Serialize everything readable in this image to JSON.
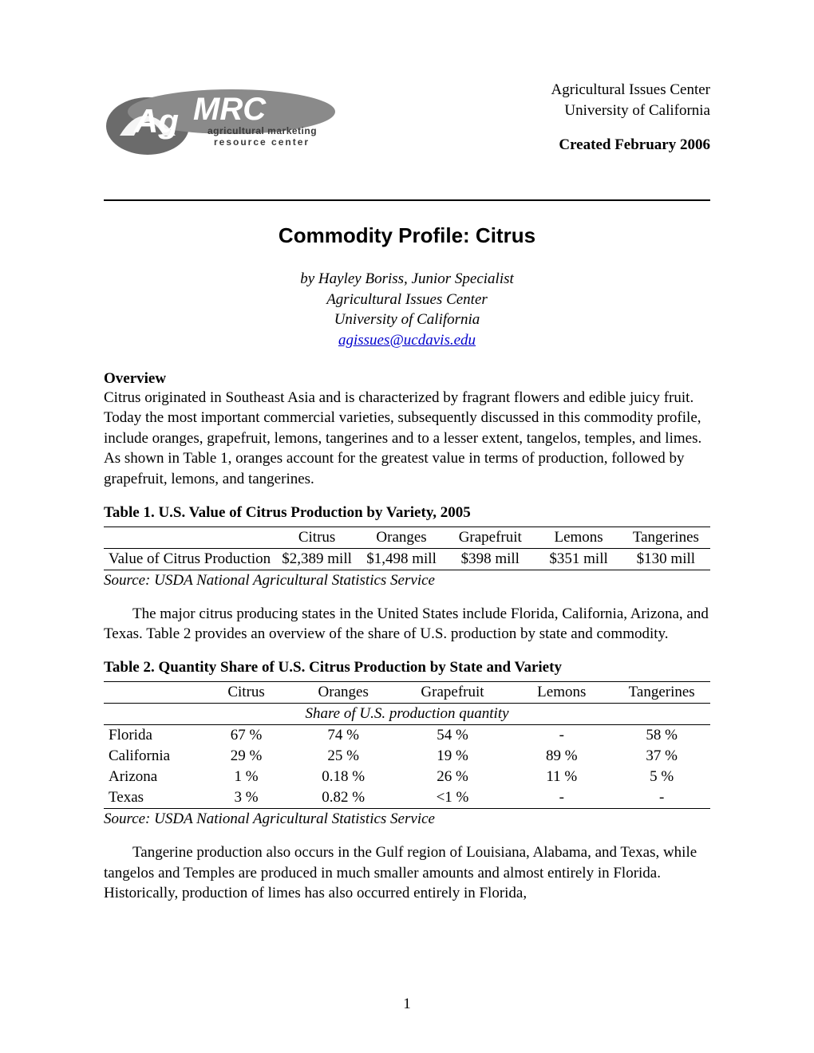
{
  "header": {
    "org1": "Agricultural Issues Center",
    "org2": "University of California",
    "created": "Created February 2006",
    "logo_alt": "AgMRC agricultural marketing resource center",
    "logo_tag1": "agricultural marketing",
    "logo_tag2": "resource center"
  },
  "title": "Commodity Profile: Citrus",
  "byline": {
    "l1": "by Hayley Boriss, Junior Specialist",
    "l2": "Agricultural Issues Center",
    "l3": "University of California",
    "email": "agissues@ucdavis.edu"
  },
  "overview_head": "Overview",
  "overview_body": "Citrus originated in Southeast Asia and is characterized by fragrant flowers and edible juicy fruit.  Today the most important commercial varieties, subsequently discussed in this commodity profile, include oranges, grapefruit, lemons, tangerines and to a lesser extent, tangelos, temples, and limes.  As shown in Table 1, oranges account for the greatest value in terms of production, followed by grapefruit, lemons, and tangerines.",
  "table1": {
    "caption": "Table 1.  U.S. Value of Citrus Production by Variety, 2005",
    "columns": [
      "",
      "Citrus",
      "Oranges",
      "Grapefruit",
      "Lemons",
      "Tangerines"
    ],
    "row_label": "Value of Citrus Production",
    "values": [
      "$2,389 mill",
      "$1,498 mill",
      "$398 mill",
      "$351 mill",
      "$130 mill"
    ],
    "source": "Source: USDA National Agricultural Statistics Service",
    "col_widths_pct": [
      16,
      17,
      17,
      17,
      17,
      16
    ]
  },
  "para2": "The major citrus producing states in the United States include Florida, California, Arizona, and Texas.  Table 2 provides an overview of the share of U.S. production by state and commodity.",
  "table2": {
    "caption": "Table 2.  Quantity Share of U.S. Citrus Production by State and Variety",
    "columns": [
      "",
      "Citrus",
      "Oranges",
      "Grapefruit",
      "Lemons",
      "Tangerines"
    ],
    "subhead": "Share of U.S. production quantity",
    "rows": [
      {
        "label": "Florida",
        "vals": [
          "67 %",
          "74 %",
          "54 %",
          "-",
          "58 %"
        ]
      },
      {
        "label": "California",
        "vals": [
          "29 %",
          "25 %",
          "19 %",
          "89 %",
          "37 %"
        ]
      },
      {
        "label": "Arizona",
        "vals": [
          "1 %",
          "0.18 %",
          "26 %",
          "11 %",
          "5 %"
        ]
      },
      {
        "label": "Texas",
        "vals": [
          "3 %",
          "0.82 %",
          "<1 %",
          "-",
          "-"
        ]
      }
    ],
    "source": "Source: USDA National Agricultural Statistics Service",
    "col_widths_pct": [
      16,
      15,
      17,
      19,
      17,
      16
    ]
  },
  "para3": "Tangerine production also occurs in the Gulf region of Louisiana, Alabama, and Texas, while tangelos and Temples are produced in much smaller amounts and almost entirely in Florida.  Historically, production of limes has also occurred entirely in Florida,",
  "page_number": "1",
  "colors": {
    "text": "#000000",
    "link": "#0000cc",
    "rule": "#000000",
    "background": "#ffffff",
    "logo_fill": "#5a5a5a"
  },
  "fonts": {
    "body_family": "Times New Roman",
    "title_family": "Arial",
    "body_size_pt": 14,
    "title_size_pt": 20
  }
}
